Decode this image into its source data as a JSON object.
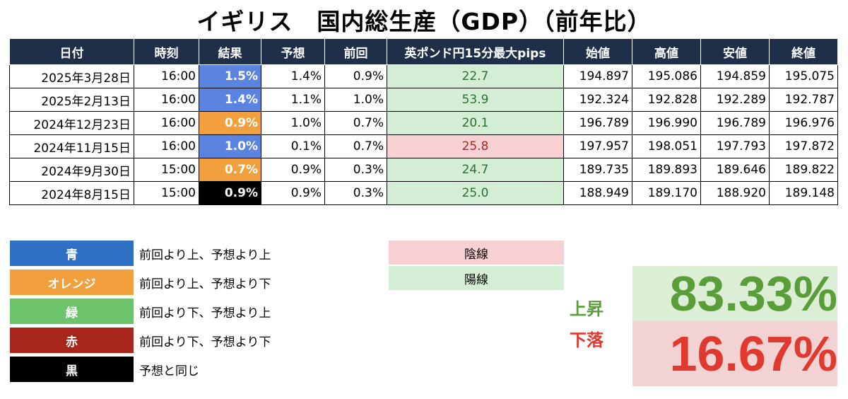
{
  "title": "イギリス　国内総生産（GDP）（前年比）",
  "table": {
    "headers": [
      "日付",
      "時刻",
      "結果",
      "予想",
      "前回",
      "英ポンド円15分最大pips",
      "始値",
      "高値",
      "安値",
      "終値"
    ],
    "rows": [
      {
        "date": "2025年3月28日",
        "time": "16:00",
        "result": "1.5%",
        "result_color": "blue",
        "forecast": "1.4%",
        "previous": "0.9%",
        "pips": "22.7",
        "pips_color": "green",
        "open": "194.897",
        "high": "195.086",
        "low": "194.859",
        "close": "195.075"
      },
      {
        "date": "2025年2月13日",
        "time": "16:00",
        "result": "1.4%",
        "result_color": "blue",
        "forecast": "1.1%",
        "previous": "1.0%",
        "pips": "53.9",
        "pips_color": "green",
        "open": "192.324",
        "high": "192.828",
        "low": "192.289",
        "close": "192.787"
      },
      {
        "date": "2024年12月23日",
        "time": "16:00",
        "result": "0.9%",
        "result_color": "orange",
        "forecast": "1.0%",
        "previous": "0.7%",
        "pips": "20.1",
        "pips_color": "green",
        "open": "196.789",
        "high": "196.990",
        "low": "196.789",
        "close": "196.976"
      },
      {
        "date": "2024年11月15日",
        "time": "16:00",
        "result": "1.0%",
        "result_color": "blue",
        "forecast": "0.1%",
        "previous": "0.7%",
        "pips": "25.8",
        "pips_color": "red",
        "open": "197.957",
        "high": "198.051",
        "low": "197.793",
        "close": "197.872"
      },
      {
        "date": "2024年9月30日",
        "time": "15:00",
        "result": "0.7%",
        "result_color": "orange",
        "forecast": "0.9%",
        "previous": "0.3%",
        "pips": "24.7",
        "pips_color": "green",
        "open": "189.735",
        "high": "189.893",
        "low": "189.646",
        "close": "189.822"
      },
      {
        "date": "2024年8月15日",
        "time": "15:00",
        "result": "0.9%",
        "result_color": "black",
        "forecast": "0.9%",
        "previous": "0.3%",
        "pips": "25.0",
        "pips_color": "green",
        "open": "188.949",
        "high": "189.170",
        "low": "188.920",
        "close": "189.148"
      }
    ]
  },
  "legend": [
    {
      "label": "青",
      "color": "#2f6fc4",
      "desc": "前回より上、予想より上"
    },
    {
      "label": "オレンジ",
      "color": "#f2a03d",
      "desc": "前回より上、予想より下"
    },
    {
      "label": "緑",
      "color": "#6cc36c",
      "desc": "前回より下、予想より上"
    },
    {
      "label": "赤",
      "color": "#a8251c",
      "desc": "前回より下、予想より下"
    },
    {
      "label": "黒",
      "color": "#000000",
      "desc": "予想と同じ"
    }
  ],
  "candles": {
    "bearish": "陰線",
    "bearish_color": "#f6d0d3",
    "bullish": "陽線",
    "bullish_color": "#d4eed6"
  },
  "stats": {
    "up_label": "上昇",
    "up_value": "83.33%",
    "down_label": "下落",
    "down_value": "16.67%"
  }
}
